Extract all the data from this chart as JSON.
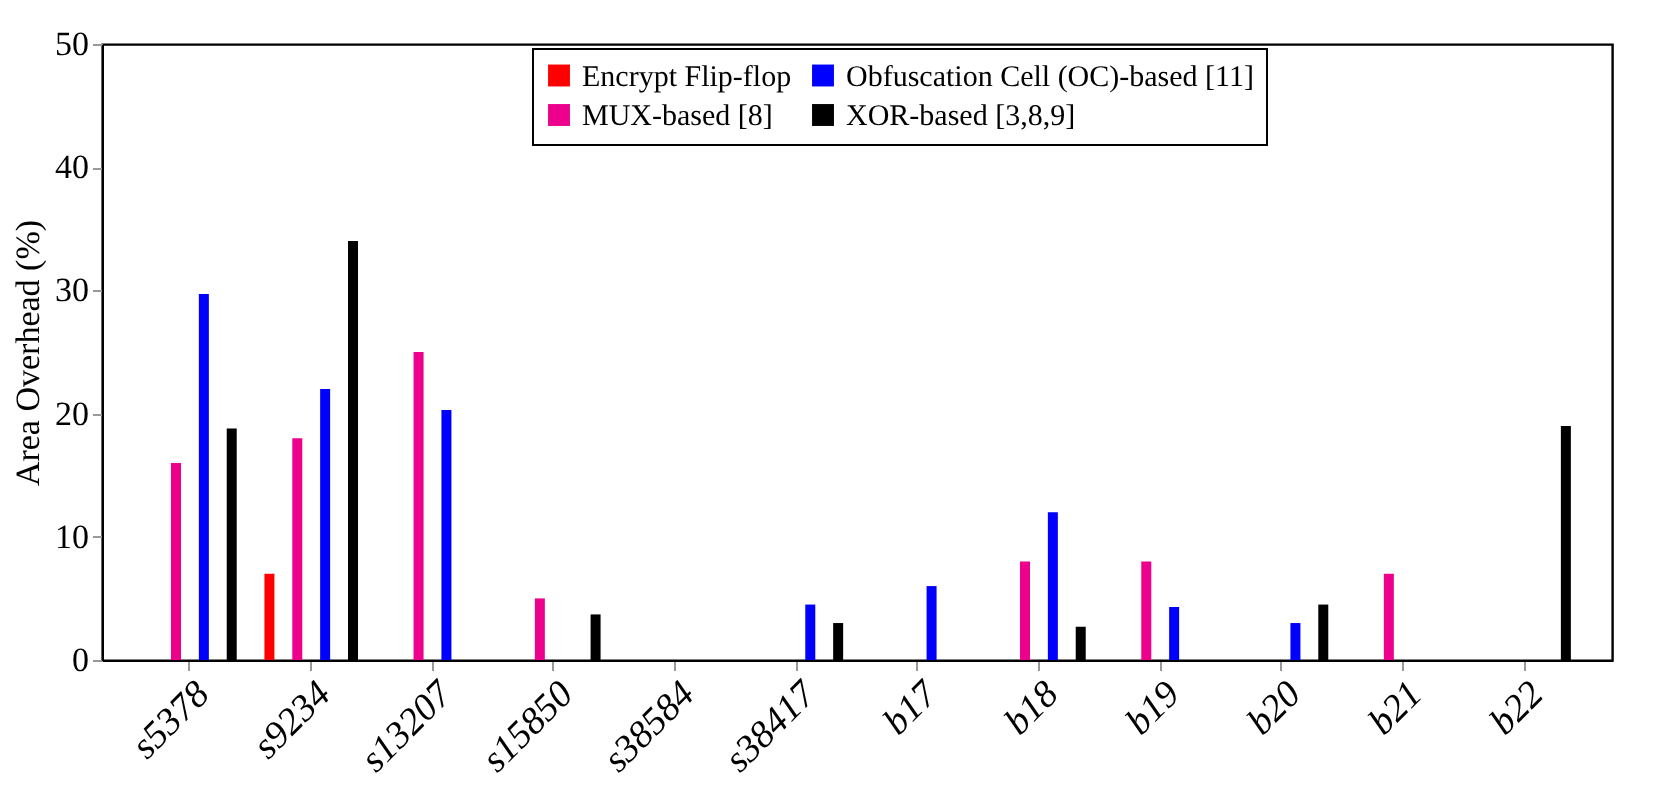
{
  "chart_data": {
    "type": "bar",
    "ylabel": "Area Overhead (%)",
    "categories": [
      "s5378",
      "s9234",
      "s13207",
      "s15850",
      "s38584",
      "s38417",
      "b17",
      "b18",
      "b19",
      "b20",
      "b21",
      "b22"
    ],
    "series": [
      {
        "name": "Encrypt Flip-flop",
        "color": "#ff0000",
        "values": [
          0,
          7,
          0,
          0,
          0,
          0,
          0,
          0,
          0,
          0,
          0,
          0
        ]
      },
      {
        "name": "MUX-based [8]",
        "color": "#ec008c",
        "values": [
          16,
          18,
          25,
          5,
          0,
          0,
          0,
          8,
          8,
          0,
          7,
          0
        ]
      },
      {
        "name": "Obfuscation Cell (OC)-based [11]",
        "color": "#0000ff",
        "values": [
          29.7,
          22,
          20.3,
          0,
          0,
          4.5,
          6,
          12,
          4.3,
          3,
          0,
          0
        ]
      },
      {
        "name": "XOR-based [3,8,9]",
        "color": "#000000",
        "values": [
          18.8,
          34,
          0,
          3.7,
          0,
          3,
          0,
          2.7,
          0,
          4.5,
          0,
          19
        ]
      }
    ],
    "ylim": [
      0,
      50
    ],
    "yticks": [
      0,
      10,
      20,
      30,
      40,
      50
    ],
    "grid": false,
    "legend": "top"
  }
}
